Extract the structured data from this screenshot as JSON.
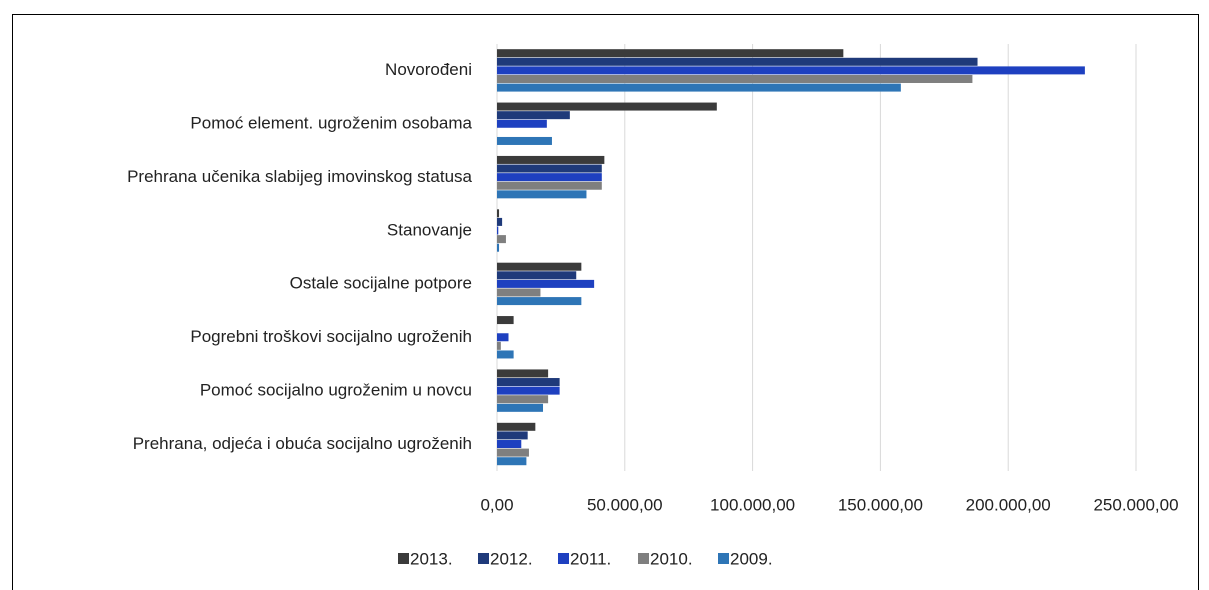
{
  "chart_data": {
    "type": "barh",
    "categories": [
      "Novorođeni",
      "Pomoć element. ugroženim osobama",
      "Prehrana učenika slabijeg imovinskog  statusa",
      "Stanovanje",
      "Ostale socijalne potpore",
      "Pogrebni troškovi socijalno ugroženih",
      "Pomoć socijalno ugroženim u novcu",
      "Prehrana, odjeća i obuća socijalno ugroženih"
    ],
    "series": [
      {
        "name": "2013.",
        "color": "#3b3b3b",
        "values": [
          135500,
          86000,
          42000,
          800,
          33000,
          6500,
          20000,
          15000
        ]
      },
      {
        "name": "2012.",
        "color": "#1f3a7a",
        "values": [
          188000,
          28500,
          41000,
          2000,
          31000,
          0,
          24500,
          12000
        ]
      },
      {
        "name": "2011.",
        "color": "#1e40c0",
        "values": [
          230000,
          19500,
          41000,
          500,
          38000,
          4500,
          24500,
          9500
        ]
      },
      {
        "name": "2010.",
        "color": "#7f7f7f",
        "values": [
          186000,
          0,
          41000,
          3500,
          17000,
          1500,
          20000,
          12500
        ]
      },
      {
        "name": "2009.",
        "color": "#2e75b6",
        "values": [
          158000,
          21500,
          35000,
          800,
          33000,
          6500,
          18000,
          11500
        ]
      }
    ],
    "xlim": [
      0,
      250000
    ],
    "xticks": [
      {
        "value": 0,
        "label": "0,00"
      },
      {
        "value": 50000,
        "label": "50.000,00"
      },
      {
        "value": 100000,
        "label": "100.000,00"
      },
      {
        "value": 150000,
        "label": "150.000,00"
      },
      {
        "value": 200000,
        "label": "200.000,00"
      },
      {
        "value": 250000,
        "label": "250.000,00"
      }
    ],
    "grid": true,
    "legend": "bottom"
  }
}
